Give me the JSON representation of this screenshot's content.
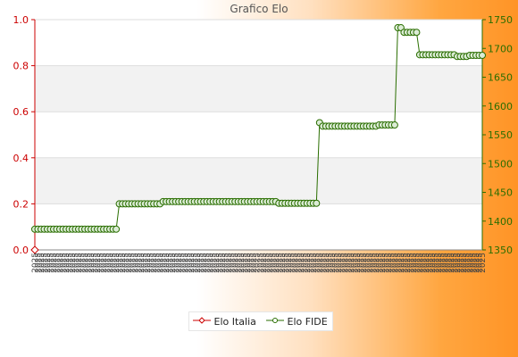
{
  "window": {
    "title": "Grafico Elo"
  },
  "colors": {
    "italia": "#cc0000",
    "fide": "#2a6e00",
    "fide_fill": "#dcecd6"
  },
  "chart_data": {
    "type": "line",
    "title": "Grafico Elo",
    "grid": true,
    "legend_position": "bottom",
    "left_axis": {
      "min": 0.0,
      "max": 1.0,
      "ticks": [
        "0.0",
        "0.2",
        "0.4",
        "0.6",
        "0.8",
        "1.0"
      ]
    },
    "right_axis": {
      "min": 1350,
      "max": 1750,
      "ticks": [
        "1350",
        "1400",
        "1450",
        "1500",
        "1550",
        "1600",
        "1650",
        "1700",
        "1750"
      ]
    },
    "x_tick_label": "2025",
    "series": [
      {
        "name": "Elo Italia",
        "axis": "left",
        "values": [
          0.0
        ]
      },
      {
        "name": "Elo FIDE",
        "axis": "right",
        "values": [
          1386,
          1386,
          1386,
          1386,
          1386,
          1386,
          1386,
          1386,
          1386,
          1386,
          1386,
          1386,
          1386,
          1386,
          1386,
          1386,
          1386,
          1386,
          1386,
          1386,
          1386,
          1386,
          1386,
          1386,
          1386,
          1386,
          1386,
          1430,
          1430,
          1430,
          1430,
          1430,
          1430,
          1430,
          1430,
          1430,
          1430,
          1430,
          1430,
          1430,
          1430,
          1434,
          1434,
          1434,
          1434,
          1434,
          1434,
          1434,
          1434,
          1434,
          1434,
          1434,
          1434,
          1434,
          1434,
          1434,
          1434,
          1434,
          1434,
          1434,
          1434,
          1434,
          1434,
          1434,
          1434,
          1434,
          1434,
          1434,
          1434,
          1434,
          1434,
          1434,
          1434,
          1434,
          1434,
          1434,
          1434,
          1434,
          1431,
          1431,
          1431,
          1431,
          1431,
          1431,
          1431,
          1431,
          1431,
          1431,
          1431,
          1431,
          1431,
          1571,
          1565,
          1565,
          1565,
          1565,
          1565,
          1565,
          1565,
          1565,
          1565,
          1565,
          1565,
          1565,
          1565,
          1565,
          1565,
          1565,
          1565,
          1565,
          1567,
          1567,
          1567,
          1567,
          1567,
          1567,
          1736,
          1736,
          1728,
          1728,
          1728,
          1728,
          1728,
          1689,
          1689,
          1689,
          1689,
          1689,
          1689,
          1689,
          1689,
          1689,
          1689,
          1689,
          1689,
          1686,
          1686,
          1686,
          1686,
          1688,
          1688,
          1688,
          1688,
          1688
        ]
      }
    ]
  }
}
